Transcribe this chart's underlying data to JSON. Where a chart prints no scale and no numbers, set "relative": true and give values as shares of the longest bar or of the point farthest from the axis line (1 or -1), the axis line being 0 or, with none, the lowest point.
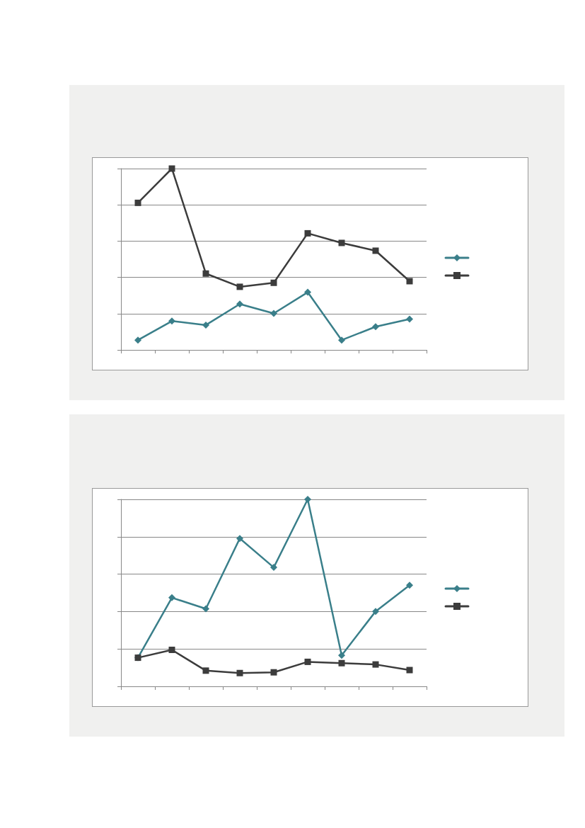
{
  "chart_data": [
    {
      "type": "line",
      "relative": true,
      "categories": [
        null,
        null,
        null,
        null,
        null,
        null,
        null,
        null,
        null
      ],
      "grid": "y",
      "series": [
        {
          "color": "#3a7f8a",
          "marker": "diamond",
          "values": [
            0.054,
            0.159,
            0.137,
            0.253,
            0.201,
            0.318,
            0.054,
            0.128,
            0.17
          ]
        },
        {
          "color": "#3c3c3c",
          "marker": "square",
          "values": [
            0.811,
            1,
            0.421,
            0.348,
            0.37,
            0.643,
            0.59,
            0.547,
            0.379
          ]
        }
      ]
    },
    {
      "type": "line",
      "relative": true,
      "categories": [
        null,
        null,
        null,
        null,
        null,
        null,
        null,
        null,
        null
      ],
      "grid": "y",
      "series": [
        {
          "color": "#3a7f8a",
          "marker": "diamond",
          "values": [
            0.153,
            0.474,
            0.415,
            0.791,
            0.636,
            1,
            0.166,
            0.401,
            0.541
          ]
        },
        {
          "color": "#3c3c3c",
          "marker": "square",
          "values": [
            0.153,
            0.195,
            0.084,
            0.071,
            0.075,
            0.131,
            0.124,
            0.117,
            0.087
          ]
        }
      ]
    }
  ]
}
